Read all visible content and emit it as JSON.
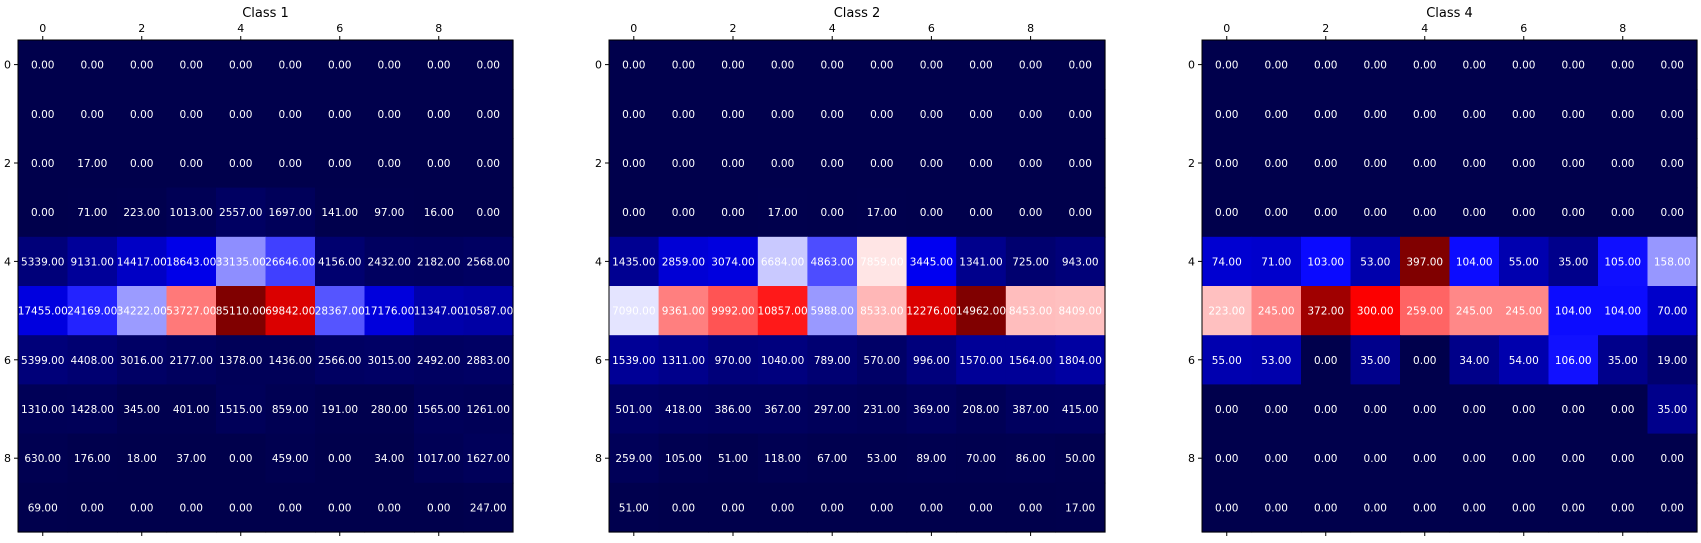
{
  "colors": {
    "low": "#00004c",
    "mid_low": "#0000ff",
    "mid": "#ffffff",
    "mid_high": "#ff0000",
    "high": "#800000",
    "cell_text": "#ffffff",
    "axis": "#000000"
  },
  "chart_data": [
    {
      "type": "heatmap",
      "title": "Class 1",
      "x_ticks": [
        0,
        2,
        4,
        6,
        8
      ],
      "y_ticks": [
        0,
        2,
        4,
        6,
        8
      ],
      "grid": false,
      "values": [
        [
          0,
          0,
          0,
          0,
          0,
          0,
          0,
          0,
          0,
          0
        ],
        [
          0,
          0,
          0,
          0,
          0,
          0,
          0,
          0,
          0,
          0
        ],
        [
          0,
          17,
          0,
          0,
          0,
          0,
          0,
          0,
          0,
          0
        ],
        [
          0,
          71,
          223,
          1013,
          2557,
          1697,
          141,
          97,
          16,
          0
        ],
        [
          5339,
          9131,
          14417,
          18643,
          33135,
          26646,
          4156,
          2432,
          2182,
          2568
        ],
        [
          17455,
          24169,
          34222,
          53727,
          85110,
          69842,
          28367,
          17176,
          11347,
          10587
        ],
        [
          5399,
          4408,
          3016,
          2177,
          1378,
          1436,
          2566,
          3015,
          2492,
          2883
        ],
        [
          1310,
          1428,
          345,
          401,
          1515,
          859,
          191,
          280,
          1565,
          1261
        ],
        [
          630,
          176,
          18,
          37,
          0,
          459,
          0,
          34,
          1017,
          1627
        ],
        [
          69,
          0,
          0,
          0,
          0,
          0,
          0,
          0,
          0,
          247
        ]
      ]
    },
    {
      "type": "heatmap",
      "title": "Class 2",
      "x_ticks": [
        0,
        2,
        4,
        6,
        8
      ],
      "y_ticks": [
        0,
        2,
        4,
        6,
        8
      ],
      "grid": false,
      "values": [
        [
          0,
          0,
          0,
          0,
          0,
          0,
          0,
          0,
          0,
          0
        ],
        [
          0,
          0,
          0,
          0,
          0,
          0,
          0,
          0,
          0,
          0
        ],
        [
          0,
          0,
          0,
          0,
          0,
          0,
          0,
          0,
          0,
          0
        ],
        [
          0,
          0,
          0,
          17,
          0,
          17,
          0,
          0,
          0,
          0
        ],
        [
          1435,
          2859,
          3074,
          6684,
          4863,
          7859,
          3445,
          1341,
          725,
          943
        ],
        [
          7090,
          9361,
          9992,
          10857,
          5988,
          8533,
          12276,
          14962,
          8453,
          8409
        ],
        [
          1539,
          1311,
          970,
          1040,
          789,
          570,
          996,
          1570,
          1564,
          1804
        ],
        [
          501,
          418,
          386,
          367,
          297,
          231,
          369,
          208,
          387,
          415
        ],
        [
          259,
          105,
          51,
          118,
          67,
          53,
          89,
          70,
          86,
          50
        ],
        [
          51,
          0,
          0,
          0,
          0,
          0,
          0,
          0,
          0,
          17
        ]
      ]
    },
    {
      "type": "heatmap",
      "title": "Class 4",
      "x_ticks": [
        0,
        2,
        4,
        6,
        8
      ],
      "y_ticks": [
        0,
        2,
        4,
        6,
        8
      ],
      "grid": false,
      "values": [
        [
          0,
          0,
          0,
          0,
          0,
          0,
          0,
          0,
          0,
          0
        ],
        [
          0,
          0,
          0,
          0,
          0,
          0,
          0,
          0,
          0,
          0
        ],
        [
          0,
          0,
          0,
          0,
          0,
          0,
          0,
          0,
          0,
          0
        ],
        [
          0,
          0,
          0,
          0,
          0,
          0,
          0,
          0,
          0,
          0
        ],
        [
          74,
          71,
          103,
          53,
          397,
          104,
          55,
          35,
          105,
          158
        ],
        [
          223,
          245,
          372,
          300,
          259,
          245,
          245,
          104,
          104,
          70
        ],
        [
          55,
          53,
          0,
          35,
          0,
          34,
          54,
          106,
          35,
          19
        ],
        [
          0,
          0,
          0,
          0,
          0,
          0,
          0,
          0,
          0,
          35
        ],
        [
          0,
          0,
          0,
          0,
          0,
          0,
          0,
          0,
          0,
          0
        ],
        [
          0,
          0,
          0,
          0,
          0,
          0,
          0,
          0,
          0,
          0
        ]
      ]
    }
  ]
}
